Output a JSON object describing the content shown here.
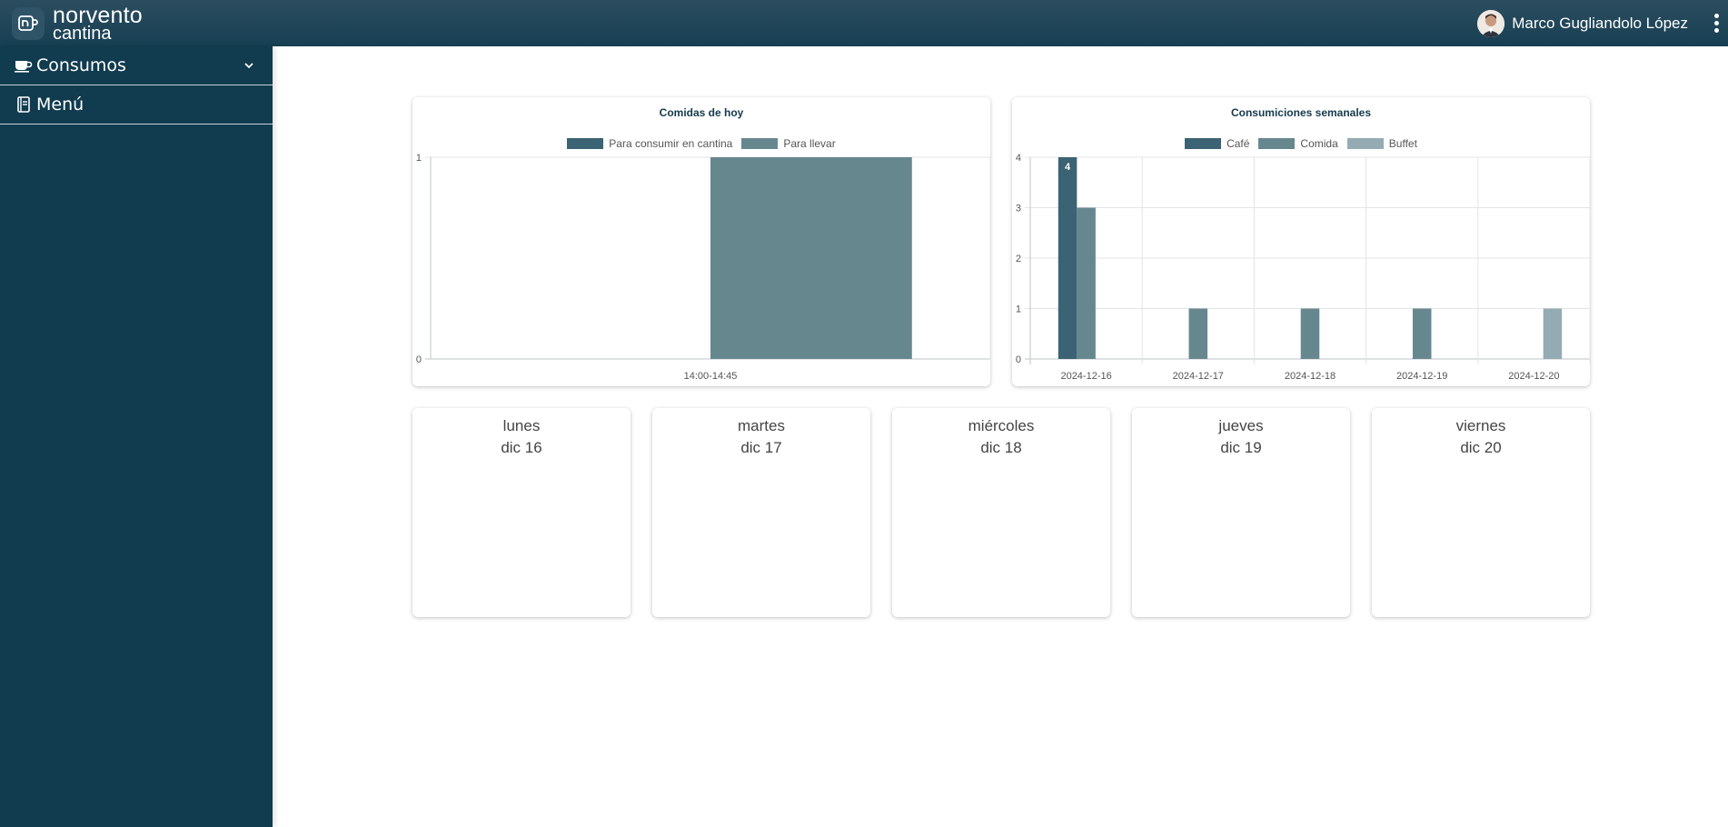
{
  "header": {
    "logo_line1": "norvento",
    "logo_line2": "cantina",
    "user_name": "Marco Gugliandolo López"
  },
  "sidebar": {
    "items": [
      {
        "label": "Consumos",
        "icon": "coffee-cup-icon"
      },
      {
        "label": "Menú",
        "icon": "book-icon"
      }
    ]
  },
  "colors": {
    "header": "#173f53",
    "sidebar": "#113b4e",
    "series_dark": "#3b6374",
    "series_mid": "#67878f",
    "series_light": "#94abb3"
  },
  "chart_data": [
    {
      "type": "bar",
      "title": "Comidas de hoy",
      "categories": [
        "14:00-14:45"
      ],
      "series": [
        {
          "name": "Para consumir en cantina",
          "values": [
            0
          ]
        },
        {
          "name": "Para llevar",
          "values": [
            1
          ]
        }
      ],
      "ylim": [
        0,
        1
      ],
      "yticks": [
        0,
        1
      ],
      "grid": true,
      "legend": "top"
    },
    {
      "type": "bar",
      "title": "Consumiciones semanales",
      "categories": [
        "2024-12-16",
        "2024-12-17",
        "2024-12-18",
        "2024-12-19",
        "2024-12-20"
      ],
      "series": [
        {
          "name": "Café",
          "values": [
            4,
            0,
            0,
            0,
            0
          ]
        },
        {
          "name": "Comida",
          "values": [
            3,
            1,
            1,
            1,
            0
          ]
        },
        {
          "name": "Buffet",
          "values": [
            0,
            0,
            0,
            0,
            1
          ]
        }
      ],
      "ylim": [
        0,
        4
      ],
      "yticks": [
        0,
        1,
        2,
        3,
        4
      ],
      "data_labels": [
        {
          "series": "Café",
          "category": "2024-12-16",
          "text": "4"
        }
      ],
      "grid": true,
      "legend": "top"
    }
  ],
  "days": [
    {
      "name": "lunes",
      "date": "dic 16"
    },
    {
      "name": "martes",
      "date": "dic 17"
    },
    {
      "name": "miércoles",
      "date": "dic 18"
    },
    {
      "name": "jueves",
      "date": "dic 19"
    },
    {
      "name": "viernes",
      "date": "dic 20"
    }
  ]
}
